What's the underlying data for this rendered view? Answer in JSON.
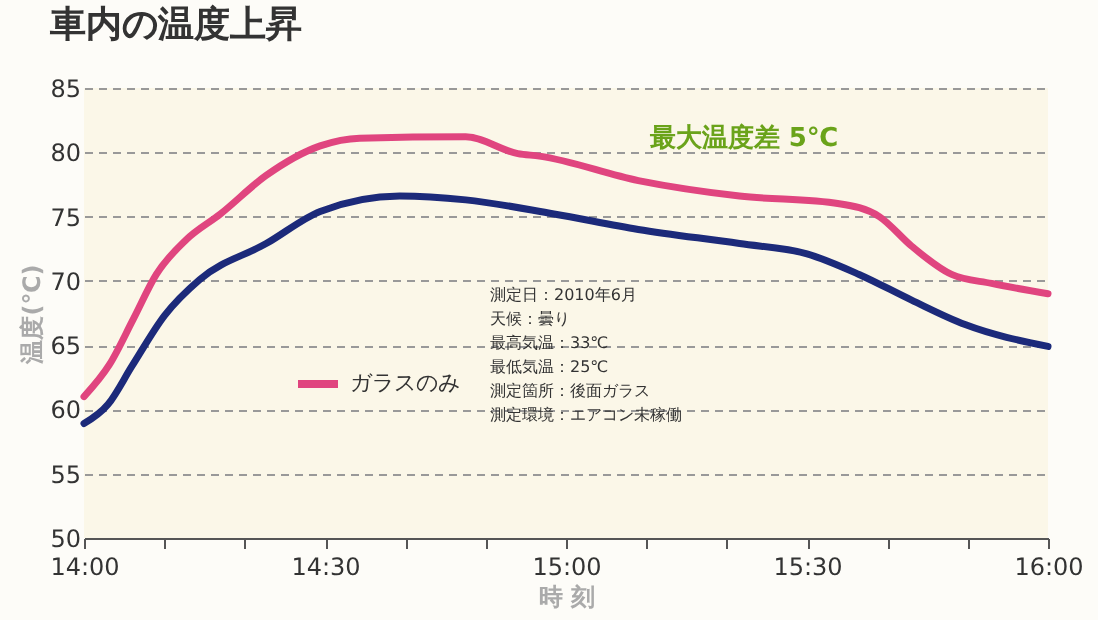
{
  "chart_data": {
    "type": "line",
    "title": "車内の温度上昇",
    "xlabel": "時 刻",
    "ylabel": "温度(℃)",
    "xlim": [
      14,
      16
    ],
    "ylim": [
      50,
      85
    ],
    "xticks": [
      {
        "value": 14,
        "label": "14:00"
      },
      {
        "value": 14.1667,
        "label": null
      },
      {
        "value": 14.3333,
        "label": null
      },
      {
        "value": 14.5,
        "label": "14:30"
      },
      {
        "value": 14.6667,
        "label": null
      },
      {
        "value": 14.8333,
        "label": null
      },
      {
        "value": 15,
        "label": "15:00"
      },
      {
        "value": 15.1667,
        "label": null
      },
      {
        "value": 15.3333,
        "label": null
      },
      {
        "value": 15.5,
        "label": "15:30"
      },
      {
        "value": 15.6667,
        "label": null
      },
      {
        "value": 15.8333,
        "label": null
      },
      {
        "value": 16,
        "label": "16:00"
      }
    ],
    "yticks": [
      50,
      55,
      60,
      65,
      70,
      75,
      80,
      85
    ],
    "grid": "y",
    "legend": "bottom left",
    "line_style": "solid",
    "marker": "none",
    "series": [
      {
        "name": "ガラスのみ",
        "color": "#e0457f",
        "x": [
          14,
          14.053,
          14.102,
          14.15,
          14.212,
          14.283,
          14.378,
          14.49,
          14.572,
          14.792,
          14.9,
          14.945,
          15.15,
          15.36,
          15.567,
          15.65,
          15.717,
          15.8,
          15.883,
          16
        ],
        "values": [
          61,
          63.5,
          67,
          70.5,
          73.2,
          75.2,
          78.2,
          80.5,
          81.1,
          81.2,
          79.9,
          79.7,
          77.8,
          76.6,
          76,
          75,
          72.7,
          70.5,
          69.8,
          69
        ]
      },
      {
        "color": "#1c2a7a",
        "x": [
          14,
          14.05,
          14.1,
          14.167,
          14.24,
          14.378,
          14.49,
          14.655,
          14.792,
          14.975,
          15.15,
          15.36,
          15.5,
          15.608,
          15.717,
          15.828,
          16
        ],
        "values": [
          58.9,
          60.4,
          63.4,
          67.3,
          70.1,
          72.9,
          75.4,
          76.6,
          76.3,
          75.2,
          74,
          72.9,
          72.1,
          70.5,
          68.5,
          66.6,
          64.9
        ]
      }
    ],
    "annotations": [
      "最大温度差 5℃",
      "測定日：2010年6月",
      "天候：曇り",
      "最高気温：33℃",
      "最低気温：25℃",
      "測定箇所：後面ガラス",
      "測定環境：エアコン未稼働"
    ]
  }
}
